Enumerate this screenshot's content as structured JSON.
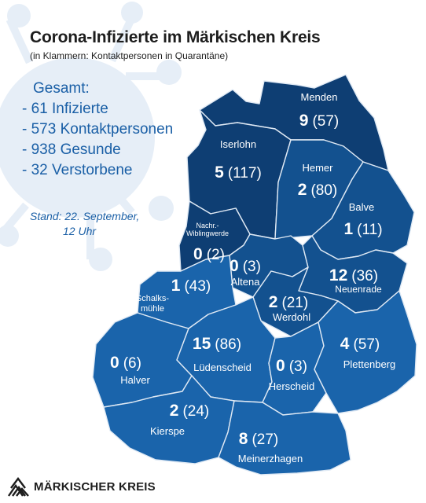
{
  "header": {
    "title": "Corona-Infizierte im Märkischen Kreis",
    "subtitle": "(in Klammern: Kontaktpersonen in Quarantäne)"
  },
  "summary": {
    "heading": "Gesamt:",
    "lines": [
      "- 61 Infizierte",
      "- 573 Kontaktpersonen",
      "- 938 Gesunde",
      "- 32 Verstorbene"
    ]
  },
  "stand": {
    "line1": "Stand: 22. September,",
    "line2": "12 Uhr"
  },
  "logo": {
    "text": "MÄRKISCHER KREIS",
    "icon": "mk-logo-icon"
  },
  "colors": {
    "dark": "#0e3e73",
    "mid": "#13518f",
    "light": "#1a64ab",
    "border": "#dfe9f4",
    "accent": "#1a5fa6"
  },
  "districts": [
    {
      "id": "menden",
      "name": "Menden",
      "infected": "9",
      "contacts": "(57)"
    },
    {
      "id": "iserlohn",
      "name": "Iserlohn",
      "infected": "5",
      "contacts": "(117)"
    },
    {
      "id": "hemer",
      "name": "Hemer",
      "infected": "2",
      "contacts": "(80)"
    },
    {
      "id": "balve",
      "name": "Balve",
      "infected": "1",
      "contacts": "(11)"
    },
    {
      "id": "nachrodt",
      "name": "Nachr.-\nWiblingwerde",
      "infected": "0",
      "contacts": "(2)"
    },
    {
      "id": "altena",
      "name": "Altena",
      "infected": "0",
      "contacts": "(3)"
    },
    {
      "id": "neuenrade",
      "name": "Neuenrade",
      "infected": "12",
      "contacts": "(36)"
    },
    {
      "id": "schalksmuehle",
      "name": "Schalks-\nmühle",
      "infected": "1",
      "contacts": "(43)"
    },
    {
      "id": "werdohl",
      "name": "Werdohl",
      "infected": "2",
      "contacts": "(21)"
    },
    {
      "id": "halver",
      "name": "Halver",
      "infected": "0",
      "contacts": "(6)"
    },
    {
      "id": "luedenscheid",
      "name": "Lüdenscheid",
      "infected": "15",
      "contacts": "(86)"
    },
    {
      "id": "herscheid",
      "name": "Herscheid",
      "infected": "0",
      "contacts": "(3)"
    },
    {
      "id": "plettenberg",
      "name": "Plettenberg",
      "infected": "4",
      "contacts": "(57)"
    },
    {
      "id": "kierspe",
      "name": "Kierspe",
      "infected": "2",
      "contacts": "(24)"
    },
    {
      "id": "meinerzhagen",
      "name": "Meinerzhagen",
      "infected": "8",
      "contacts": "(27)"
    }
  ]
}
